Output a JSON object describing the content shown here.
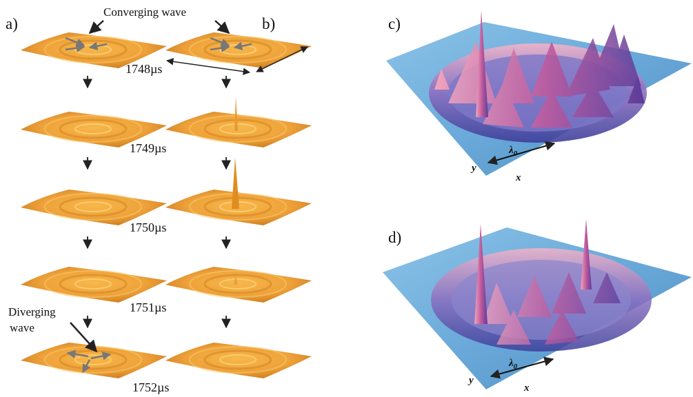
{
  "panels": [
    {
      "label": "a)"
    },
    {
      "label": "b)"
    },
    {
      "label": "c)",
      "scale_symbol": "λ",
      "scale_subscript": "0",
      "x_axis": "x",
      "y_axis": "y"
    },
    {
      "label": "d)",
      "scale_symbol": "λ",
      "scale_subscript": "0",
      "x_axis": "x",
      "y_axis": "y"
    }
  ],
  "annotations": {
    "converging": "Converging wave",
    "diverging": [
      "Diverging",
      "wave"
    ]
  },
  "times": [
    "1748µs",
    "1749µs",
    "1750µs",
    "1751µs",
    "1752µs"
  ]
}
